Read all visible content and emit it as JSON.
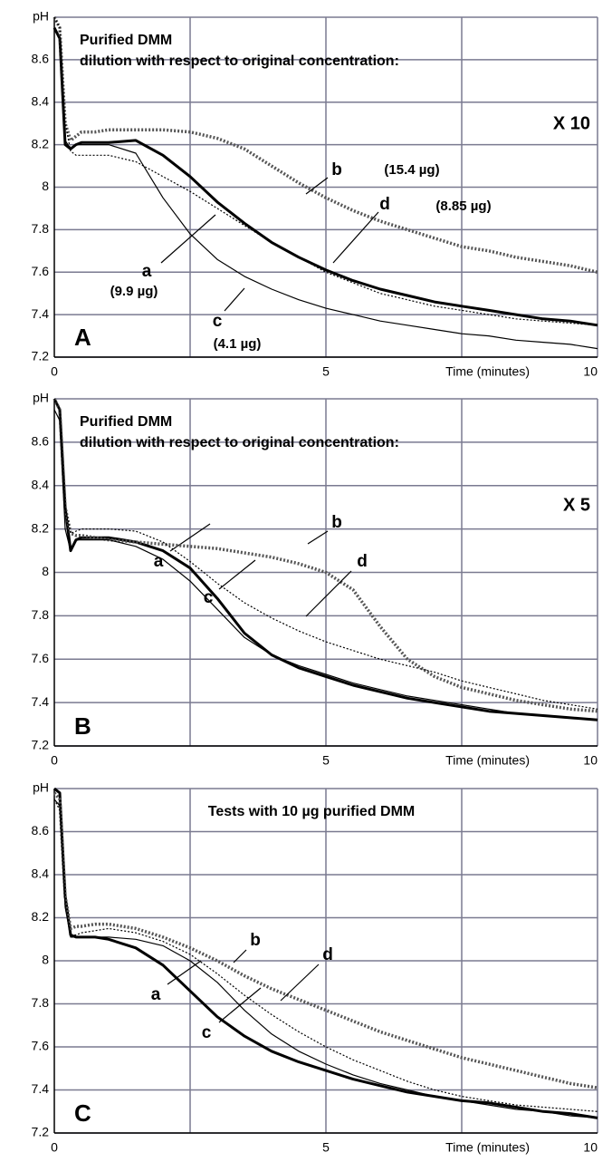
{
  "chart_data": [
    {
      "type": "line",
      "panel": "A",
      "title": "Purified DMM",
      "subtitle": "dilution with respect to original concentration:",
      "annotation": "X 10",
      "xlabel": "Time (minutes)",
      "x": [
        0,
        0.1,
        0.2,
        0.3,
        0.4,
        0.5,
        0.75,
        1,
        1.5,
        2,
        2.5,
        3,
        3.5,
        4,
        4.5,
        5,
        5.5,
        6,
        6.5,
        7,
        7.5,
        8,
        8.5,
        9,
        9.5,
        10
      ],
      "xlim": [
        0,
        10
      ],
      "xticks": [
        0,
        5,
        10
      ],
      "xminor": [
        2.5,
        7.5
      ],
      "ylim": [
        7.2,
        8.8
      ],
      "yticks": [
        7.2,
        7.4,
        7.6,
        7.8,
        8,
        8.2,
        8.4,
        8.6,
        {
          "value": 8.8,
          "label": "pH"
        }
      ],
      "grid": true,
      "series": [
        {
          "name": "a",
          "label": "(9.9 µg)",
          "color": "#000000",
          "values": [
            8.75,
            8.7,
            8.2,
            8.18,
            8.2,
            8.21,
            8.21,
            8.21,
            8.22,
            8.15,
            8.05,
            7.93,
            7.83,
            7.74,
            7.67,
            7.61,
            7.56,
            7.52,
            7.49,
            7.46,
            7.44,
            7.42,
            7.4,
            7.38,
            7.37,
            7.35
          ]
        },
        {
          "name": "b",
          "label": "(15.4 µg)",
          "color": "#555555",
          "values": [
            8.8,
            8.75,
            8.3,
            8.22,
            8.24,
            8.26,
            8.26,
            8.27,
            8.27,
            8.27,
            8.26,
            8.23,
            8.18,
            8.1,
            8.02,
            7.95,
            7.89,
            7.84,
            7.8,
            7.76,
            7.72,
            7.7,
            7.67,
            7.65,
            7.63,
            7.6
          ]
        },
        {
          "name": "c",
          "label": "(4.1 µg)",
          "color": "#000000",
          "values": [
            8.75,
            8.7,
            8.22,
            8.18,
            8.2,
            8.2,
            8.2,
            8.2,
            8.16,
            7.95,
            7.78,
            7.66,
            7.58,
            7.52,
            7.47,
            7.43,
            7.4,
            7.37,
            7.35,
            7.33,
            7.31,
            7.3,
            7.28,
            7.27,
            7.26,
            7.24
          ]
        },
        {
          "name": "d",
          "label": "(8.85 µg)",
          "color": "#000000",
          "values": [
            8.8,
            8.75,
            8.3,
            8.17,
            8.15,
            8.15,
            8.15,
            8.15,
            8.12,
            8.05,
            7.98,
            7.9,
            7.82,
            7.74,
            7.67,
            7.6,
            7.55,
            7.5,
            7.47,
            7.44,
            7.42,
            7.4,
            7.38,
            7.37,
            7.36,
            7.35
          ]
        }
      ]
    },
    {
      "type": "line",
      "panel": "B",
      "title": "Purified DMM",
      "subtitle": "dilution with respect to original concentration:",
      "annotation": "X 5",
      "xlabel": "Time (minutes)",
      "x": [
        0,
        0.1,
        0.2,
        0.3,
        0.4,
        0.5,
        0.75,
        1,
        1.5,
        2,
        2.5,
        3,
        3.5,
        4,
        4.5,
        5,
        5.5,
        6,
        6.5,
        7,
        7.5,
        8,
        8.5,
        9,
        9.5,
        10
      ],
      "xlim": [
        0,
        10
      ],
      "xticks": [
        0,
        5,
        10
      ],
      "xminor": [
        2.5,
        7.5
      ],
      "ylim": [
        7.2,
        8.8
      ],
      "yticks": [
        7.2,
        7.4,
        7.6,
        7.8,
        8,
        8.2,
        8.4,
        8.6,
        {
          "value": 8.8,
          "label": "pH"
        }
      ],
      "grid": true,
      "series": [
        {
          "name": "a",
          "color": "#000000",
          "values": [
            8.8,
            8.75,
            8.3,
            8.1,
            8.15,
            8.16,
            8.16,
            8.16,
            8.14,
            8.1,
            8.02,
            7.88,
            7.72,
            7.62,
            7.56,
            7.52,
            7.48,
            7.45,
            7.42,
            7.4,
            7.38,
            7.36,
            7.35,
            7.34,
            7.33,
            7.32
          ]
        },
        {
          "name": "b",
          "color": "#555555",
          "values": [
            8.8,
            8.75,
            8.3,
            8.18,
            8.17,
            8.17,
            8.16,
            8.15,
            8.14,
            8.13,
            8.12,
            8.11,
            8.09,
            8.07,
            8.04,
            8.0,
            7.92,
            7.75,
            7.6,
            7.52,
            7.47,
            7.44,
            7.41,
            7.39,
            7.37,
            7.36
          ]
        },
        {
          "name": "c",
          "color": "#000000",
          "values": [
            8.75,
            8.7,
            8.2,
            8.1,
            8.15,
            8.15,
            8.15,
            8.15,
            8.12,
            8.06,
            7.96,
            7.83,
            7.7,
            7.62,
            7.57,
            7.53,
            7.49,
            7.46,
            7.43,
            7.41,
            7.39,
            7.37,
            7.35,
            7.34,
            7.33,
            7.32
          ]
        },
        {
          "name": "d",
          "color": "#000000",
          "values": [
            8.8,
            8.75,
            8.3,
            8.18,
            8.19,
            8.2,
            8.2,
            8.2,
            8.19,
            8.14,
            8.05,
            7.95,
            7.86,
            7.79,
            7.73,
            7.68,
            7.64,
            7.6,
            7.57,
            7.54,
            7.5,
            7.47,
            7.44,
            7.41,
            7.39,
            7.37
          ]
        }
      ]
    },
    {
      "type": "line",
      "panel": "C",
      "title": "Tests with 10 µg purified DMM",
      "xlabel": "Time (minutes)",
      "x": [
        0,
        0.1,
        0.2,
        0.3,
        0.4,
        0.5,
        0.75,
        1,
        1.5,
        2,
        2.5,
        3,
        3.5,
        4,
        4.5,
        5,
        5.5,
        6,
        6.5,
        7,
        7.5,
        8,
        8.5,
        9,
        9.5,
        10
      ],
      "xlim": [
        0,
        10
      ],
      "xticks": [
        0,
        5,
        10
      ],
      "xminor": [
        2.5,
        7.5
      ],
      "ylim": [
        7.2,
        8.8
      ],
      "yticks": [
        7.2,
        7.4,
        7.6,
        7.8,
        8,
        8.2,
        8.4,
        8.6,
        {
          "value": 8.8,
          "label": "pH"
        }
      ],
      "grid": true,
      "series": [
        {
          "name": "a",
          "color": "#000000",
          "values": [
            8.8,
            8.78,
            8.3,
            8.12,
            8.11,
            8.11,
            8.11,
            8.1,
            8.06,
            7.98,
            7.86,
            7.74,
            7.65,
            7.58,
            7.53,
            7.49,
            7.45,
            7.42,
            7.39,
            7.37,
            7.35,
            7.34,
            7.32,
            7.3,
            7.29,
            7.27
          ]
        },
        {
          "name": "b",
          "color": "#555555",
          "values": [
            8.78,
            8.75,
            8.3,
            8.15,
            8.16,
            8.16,
            8.17,
            8.17,
            8.15,
            8.11,
            8.06,
            8.0,
            7.93,
            7.87,
            7.82,
            7.77,
            7.72,
            7.67,
            7.63,
            7.59,
            7.55,
            7.52,
            7.49,
            7.46,
            7.43,
            7.41
          ]
        },
        {
          "name": "c",
          "color": "#000000",
          "values": [
            8.75,
            8.72,
            8.25,
            8.11,
            8.11,
            8.11,
            8.11,
            8.11,
            8.1,
            8.07,
            8.0,
            7.9,
            7.77,
            7.66,
            7.58,
            7.52,
            7.47,
            7.43,
            7.4,
            7.37,
            7.35,
            7.33,
            7.31,
            7.3,
            7.28,
            7.27
          ]
        },
        {
          "name": "d",
          "color": "#000000",
          "values": [
            8.75,
            8.7,
            8.25,
            8.12,
            8.12,
            8.13,
            8.14,
            8.15,
            8.13,
            8.09,
            8.03,
            7.94,
            7.84,
            7.75,
            7.67,
            7.6,
            7.54,
            7.49,
            7.44,
            7.4,
            7.37,
            7.35,
            7.33,
            7.32,
            7.31,
            7.3
          ]
        }
      ]
    }
  ]
}
